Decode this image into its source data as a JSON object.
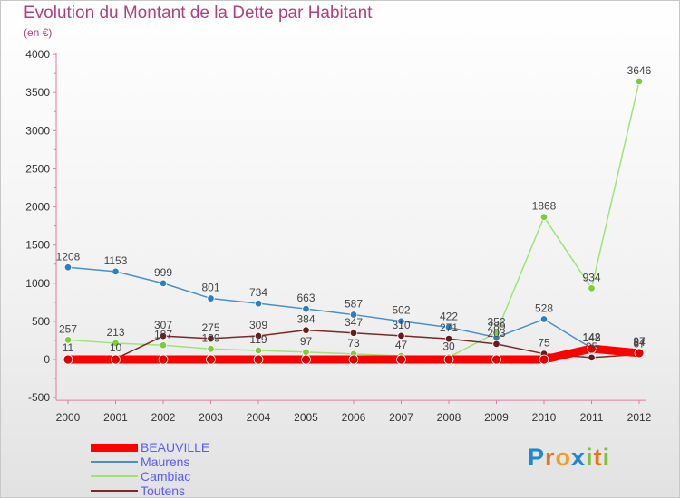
{
  "title": "Evolution du Montant de la Dette par Habitant",
  "unit": "(en €)",
  "logo": {
    "letters": [
      "P",
      "r",
      "o",
      "x",
      "i",
      "t",
      "i"
    ],
    "colors": [
      "#1e88d4",
      "#e8731a",
      "#f0a020",
      "#1e88d4",
      "#7cc23c",
      "#e8731a",
      "#7cc23c"
    ]
  },
  "chart_data": {
    "type": "line",
    "title": "Evolution du Montant de la Dette par Habitant",
    "ylabel": "(en €)",
    "x": [
      "2000",
      "2001",
      "2002",
      "2003",
      "2004",
      "2005",
      "2006",
      "2007",
      "2008",
      "2009",
      "2010",
      "2011",
      "2012"
    ],
    "ylim": [
      -500,
      4000
    ],
    "yticks": [
      "-500",
      "0",
      "500",
      "1000",
      "1500",
      "2000",
      "2500",
      "3000",
      "3500",
      "4000"
    ],
    "legend_position": "bottom-left",
    "series": [
      {
        "name": "BEAUVILLE",
        "color": "#ff0000",
        "point_color": "#e00000",
        "emphasis": true,
        "values": [
          0,
          0,
          0,
          0,
          0,
          0,
          0,
          0,
          0,
          0,
          0,
          142,
          84
        ],
        "labels": [
          "",
          "",
          "",
          "",
          "",
          "",
          "",
          "",
          "",
          "",
          "",
          "142",
          "84"
        ]
      },
      {
        "name": "Maurens",
        "color": "#4a90c8",
        "point_color": "#2f7fc0",
        "emphasis": false,
        "values": [
          1208,
          1153,
          999,
          801,
          734,
          663,
          587,
          502,
          422,
          289,
          528,
          148,
          97
        ],
        "labels": [
          "1208",
          "1153",
          "999",
          "801",
          "734",
          "663",
          "587",
          "502",
          "422",
          "289",
          "528",
          "148",
          "97"
        ]
      },
      {
        "name": "Cambiac",
        "color": "#9de37a",
        "point_color": "#7ccc3c",
        "emphasis": false,
        "values": [
          257,
          213,
          187,
          139,
          119,
          97,
          73,
          47,
          30,
          352,
          1868,
          934,
          3646
        ],
        "labels": [
          "257",
          "213",
          "187",
          "139",
          "119",
          "97",
          "73",
          "47",
          "30",
          "352",
          "1868",
          "934",
          "3646"
        ]
      },
      {
        "name": "Toutens",
        "color": "#7a2828",
        "point_color": "#6a1a1a",
        "emphasis": false,
        "values": [
          11,
          10,
          307,
          275,
          309,
          384,
          347,
          310,
          271,
          203,
          75,
          25,
          67
        ],
        "labels": [
          "11",
          "10",
          "307",
          "275",
          "309",
          "384",
          "347",
          "310",
          "271",
          "203",
          "75",
          "25",
          "67"
        ]
      }
    ]
  }
}
